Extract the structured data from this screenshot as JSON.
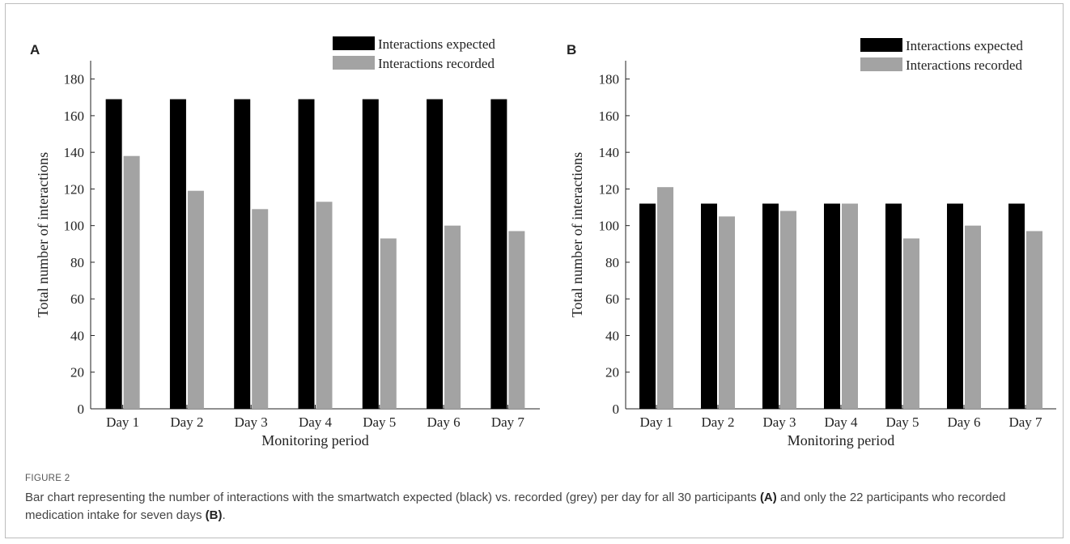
{
  "figure": {
    "label": "FIGURE 2",
    "caption": {
      "part1": "Bar chart representing the number of interactions with the smartwatch expected (black) vs. recorded (grey) per day for all 30 participants ",
      "ref_a": "(A)",
      "part2": " and only the 22 participants who recorded medication intake for seven days ",
      "ref_b": "(B)",
      "part3": "."
    }
  },
  "colors": {
    "expected": "#000000",
    "recorded": "#a3a3a3",
    "axis": "#222222"
  },
  "chart_data": [
    {
      "panel": "A",
      "type": "bar",
      "categories": [
        "Day 1",
        "Day 2",
        "Day 3",
        "Day 4",
        "Day 5",
        "Day 6",
        "Day 7"
      ],
      "series": [
        {
          "name": "Interactions expected",
          "values": [
            169,
            169,
            169,
            169,
            169,
            169,
            169
          ]
        },
        {
          "name": "Interactions recorded",
          "values": [
            138,
            119,
            109,
            113,
            93,
            100,
            97
          ]
        }
      ],
      "xlabel": "Monitoring period",
      "ylabel": "Total number of interactions",
      "ylim": [
        0,
        190
      ],
      "yticks": [
        0,
        20,
        40,
        60,
        80,
        100,
        120,
        140,
        160,
        180
      ],
      "legend_position": "top-right",
      "grid": false
    },
    {
      "panel": "B",
      "type": "bar",
      "categories": [
        "Day 1",
        "Day 2",
        "Day 3",
        "Day 4",
        "Day 5",
        "Day 6",
        "Day 7"
      ],
      "series": [
        {
          "name": "Interactions expected",
          "values": [
            112,
            112,
            112,
            112,
            112,
            112,
            112
          ]
        },
        {
          "name": "Interactions recorded",
          "values": [
            121,
            105,
            108,
            112,
            93,
            100,
            97
          ]
        }
      ],
      "xlabel": "Monitoring period",
      "ylabel": "Total number of interactions",
      "ylim": [
        0,
        190
      ],
      "yticks": [
        0,
        20,
        40,
        60,
        80,
        100,
        120,
        140,
        160,
        180
      ],
      "legend_position": "top-right",
      "grid": false
    }
  ]
}
